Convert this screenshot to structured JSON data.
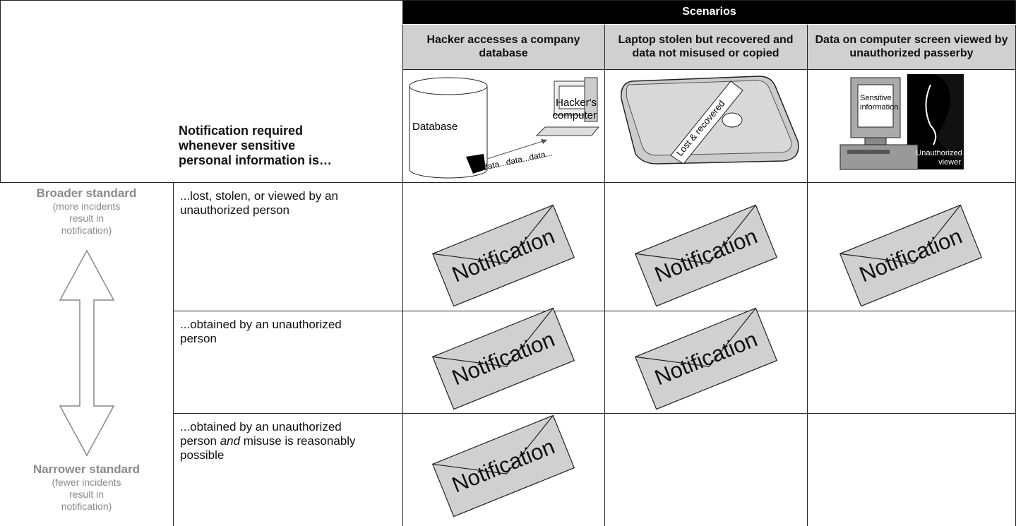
{
  "header": {
    "title": "Scenarios",
    "columns": [
      "Hacker accesses a company database",
      "Laptop stolen but recovered and data not misused or copied",
      "Data on computer screen viewed by unauthorized passerby"
    ]
  },
  "illustrations": {
    "database": "Database",
    "hacker_computer": [
      "Hacker's",
      "computer"
    ],
    "data_stream": "data...data...data...",
    "laptop_tag": "Lost & recovered",
    "screen_text": [
      "Sensitive",
      "information"
    ],
    "viewer": [
      "Unauthorized",
      "viewer"
    ]
  },
  "row_header": "Notification required whenever sensitive personal information is…",
  "scale": {
    "top": {
      "title": "Broader standard",
      "note": "(more incidents result in notification)"
    },
    "bottom": {
      "title": "Narrower standard",
      "note": "(fewer incidents result in notification)"
    }
  },
  "rows": [
    {
      "label": [
        "...lost, stolen, or viewed by an unauthorized person"
      ],
      "cells": [
        "Notification",
        "Notification",
        "Notification"
      ]
    },
    {
      "label": [
        "...obtained by an unauthorized person"
      ],
      "cells": [
        "Notification",
        "Notification",
        null
      ]
    },
    {
      "label": [
        "...obtained by an unauthorized person ",
        "and",
        " misuse is reasonably possible"
      ],
      "cells": [
        "Notification",
        null,
        null
      ]
    }
  ]
}
